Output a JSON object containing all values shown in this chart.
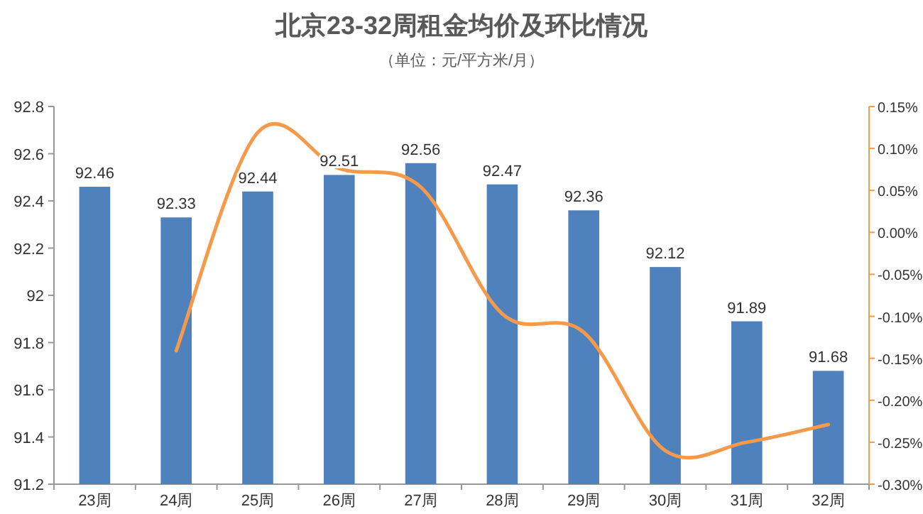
{
  "chart_data": {
    "type": "bar",
    "title": "北京23-32周租金均价及环比情况",
    "subtitle": "（单位：元/平方米/月）",
    "categories": [
      "23周",
      "24周",
      "25周",
      "26周",
      "27周",
      "28周",
      "29周",
      "30周",
      "31周",
      "32周"
    ],
    "series": [
      {
        "color": "#4f81bd",
        "values": [
          92.46,
          92.33,
          92.44,
          92.51,
          92.56,
          92.47,
          92.36,
          92.12,
          91.89,
          91.68
        ],
        "value_labels": [
          "92.46",
          "92.33",
          "92.44",
          "92.51",
          "92.56",
          "92.47",
          "92.36",
          "92.12",
          "91.89",
          "91.68"
        ]
      },
      {
        "type": "line",
        "axis": "y2",
        "color": "#f59a4a",
        "values": [
          null,
          -0.141,
          0.119,
          0.076,
          0.054,
          -0.097,
          -0.119,
          -0.26,
          -0.25,
          -0.229
        ]
      }
    ],
    "ylim": [
      91.2,
      92.8
    ],
    "yticks": [
      91.2,
      91.4,
      91.6,
      91.8,
      92,
      92.2,
      92.4,
      92.6,
      92.8
    ],
    "y2lim": [
      -0.3,
      0.15
    ],
    "y2ticks": [
      {
        "value": -0.3,
        "label": "-0.30%"
      },
      {
        "value": -0.25,
        "label": "-0.25%"
      },
      {
        "value": -0.2,
        "label": "-0.20%"
      },
      {
        "value": -0.15,
        "label": "-0.15%"
      },
      {
        "value": -0.1,
        "label": "-0.10%"
      },
      {
        "value": -0.05,
        "label": "-0.05%"
      },
      {
        "value": 0,
        "label": "0.00%"
      },
      {
        "value": 0.05,
        "label": "0.05%"
      },
      {
        "value": 0.1,
        "label": "0.10%"
      },
      {
        "value": 0.15,
        "label": "0.15%"
      }
    ],
    "grid": false,
    "marker": "none",
    "line_style": "solid"
  }
}
